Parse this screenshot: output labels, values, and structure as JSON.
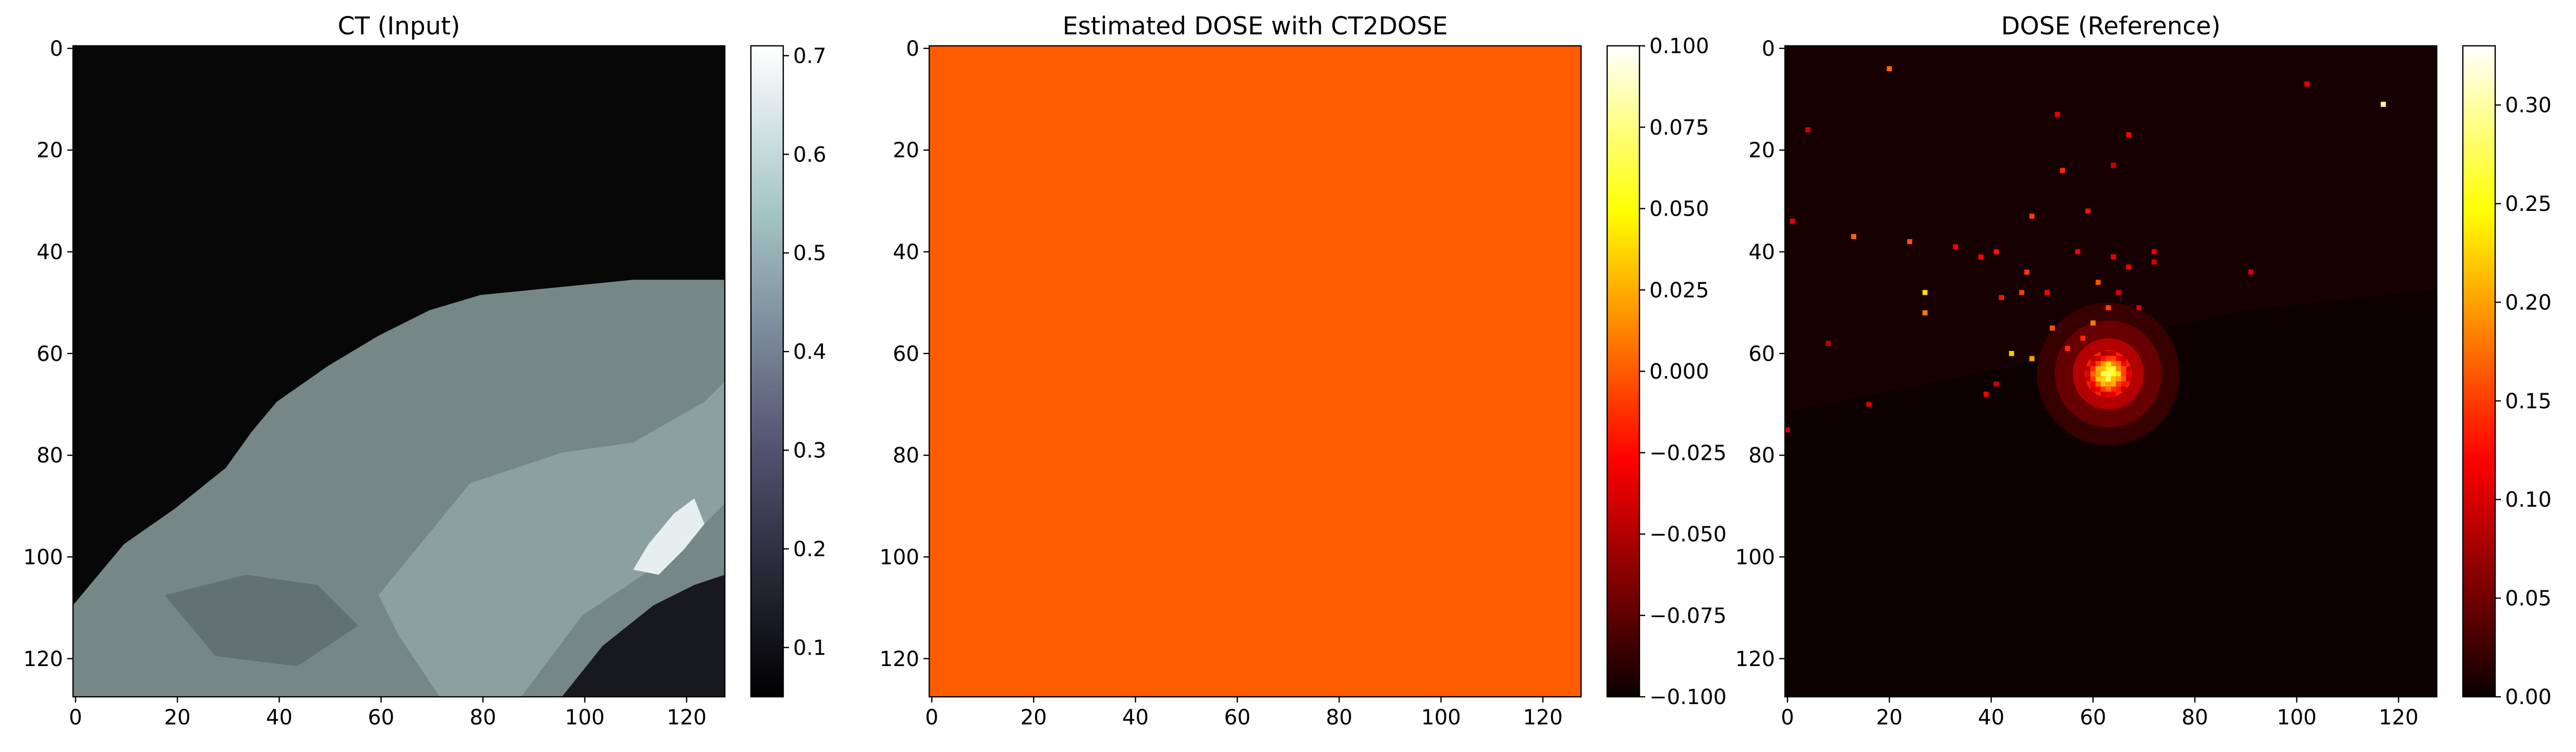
{
  "figure": {
    "panels": [
      {
        "title": "CT (Input)",
        "colormap": "bone",
        "x_ticks": [
          "0",
          "20",
          "40",
          "60",
          "80",
          "100",
          "120"
        ],
        "y_ticks": [
          "0",
          "20",
          "40",
          "60",
          "80",
          "100",
          "120"
        ],
        "colorbar_ticks": [
          "0.1",
          "0.2",
          "0.3",
          "0.4",
          "0.5",
          "0.6",
          "0.7"
        ]
      },
      {
        "title": "Estimated DOSE with CT2DOSE",
        "colormap": "hot",
        "x_ticks": [
          "0",
          "20",
          "40",
          "60",
          "80",
          "100",
          "120"
        ],
        "y_ticks": [
          "0",
          "20",
          "40",
          "60",
          "80",
          "100",
          "120"
        ],
        "colorbar_ticks": [
          "−0.100",
          "−0.075",
          "−0.050",
          "−0.025",
          "0.000",
          "0.025",
          "0.050",
          "0.075",
          "0.100"
        ]
      },
      {
        "title": "DOSE (Reference)",
        "colormap": "hot",
        "x_ticks": [
          "0",
          "20",
          "40",
          "60",
          "80",
          "100",
          "120"
        ],
        "y_ticks": [
          "0",
          "20",
          "40",
          "60",
          "80",
          "100",
          "120"
        ],
        "colorbar_ticks": [
          "0.00",
          "0.05",
          "0.10",
          "0.15",
          "0.20",
          "0.25",
          "0.30"
        ]
      }
    ]
  },
  "chart_data": [
    {
      "type": "heatmap",
      "title": "CT (Input)",
      "xlabel": "",
      "ylabel": "",
      "xlim": [
        0,
        127
      ],
      "ylim": [
        127,
        0
      ],
      "grid_size": [
        128,
        128
      ],
      "colormap": "bone",
      "colorbar_range": [
        0.05,
        0.71
      ],
      "content": {
        "background_value": 0.05,
        "body_value": 0.48,
        "body_outline_left_to_right": [
          [
            0,
            110
          ],
          [
            5,
            104
          ],
          [
            10,
            98
          ],
          [
            20,
            91
          ],
          [
            30,
            83
          ],
          [
            35,
            76
          ],
          [
            40,
            70
          ],
          [
            50,
            63
          ],
          [
            60,
            57
          ],
          [
            70,
            52
          ],
          [
            80,
            49
          ],
          [
            90,
            48
          ],
          [
            100,
            47
          ],
          [
            110,
            46
          ],
          [
            120,
            46
          ],
          [
            127,
            46
          ]
        ],
        "bone_region_center": [
          115,
          97
        ],
        "bone_value": 0.71
      }
    },
    {
      "type": "heatmap",
      "title": "Estimated DOSE with CT2DOSE",
      "xlabel": "",
      "ylabel": "",
      "xlim": [
        0,
        127
      ],
      "ylim": [
        127,
        0
      ],
      "grid_size": [
        128,
        128
      ],
      "colormap": "hot",
      "colorbar_range": [
        -0.1,
        0.1
      ],
      "content": {
        "uniform_value": 0.0
      }
    },
    {
      "type": "heatmap",
      "title": "DOSE (Reference)",
      "xlabel": "",
      "ylabel": "",
      "xlim": [
        0,
        127
      ],
      "ylim": [
        127,
        0
      ],
      "grid_size": [
        128,
        128
      ],
      "colormap": "hot",
      "colorbar_range": [
        0.0,
        0.33
      ],
      "content": {
        "background_value": 0.005,
        "hotspot_center": [
          63,
          64
        ],
        "hotspot_peak": 0.33,
        "hotspot_radius": 4,
        "halo_radius": 14,
        "halo_value": 0.05,
        "scatter_points": [
          [
            20,
            4,
            0.17
          ],
          [
            102,
            7,
            0.11
          ],
          [
            117,
            11,
            0.3
          ],
          [
            4,
            16,
            0.1
          ],
          [
            53,
            13,
            0.11
          ],
          [
            67,
            17,
            0.12
          ],
          [
            54,
            24,
            0.14
          ],
          [
            64,
            23,
            0.1
          ],
          [
            1,
            34,
            0.11
          ],
          [
            48,
            33,
            0.15
          ],
          [
            59,
            32,
            0.13
          ],
          [
            13,
            37,
            0.17
          ],
          [
            24,
            38,
            0.16
          ],
          [
            33,
            39,
            0.12
          ],
          [
            38,
            41,
            0.12
          ],
          [
            41,
            40,
            0.13
          ],
          [
            57,
            40,
            0.12
          ],
          [
            64,
            41,
            0.11
          ],
          [
            72,
            40,
            0.11
          ],
          [
            72,
            42,
            0.1
          ],
          [
            67,
            43,
            0.12
          ],
          [
            91,
            44,
            0.1
          ],
          [
            47,
            44,
            0.15
          ],
          [
            61,
            46,
            0.16
          ],
          [
            27,
            48,
            0.23
          ],
          [
            42,
            49,
            0.13
          ],
          [
            46,
            48,
            0.15
          ],
          [
            51,
            48,
            0.12
          ],
          [
            65,
            48,
            0.1
          ],
          [
            27,
            52,
            0.18
          ],
          [
            63,
            51,
            0.15
          ],
          [
            69,
            51,
            0.1
          ],
          [
            60,
            54,
            0.18
          ],
          [
            52,
            55,
            0.16
          ],
          [
            8,
            58,
            0.09
          ],
          [
            44,
            60,
            0.22
          ],
          [
            48,
            61,
            0.2
          ],
          [
            55,
            59,
            0.14
          ],
          [
            58,
            57,
            0.14
          ],
          [
            16,
            70,
            0.1
          ],
          [
            39,
            68,
            0.12
          ],
          [
            41,
            66,
            0.1
          ],
          [
            0,
            75,
            0.1
          ]
        ]
      }
    }
  ]
}
